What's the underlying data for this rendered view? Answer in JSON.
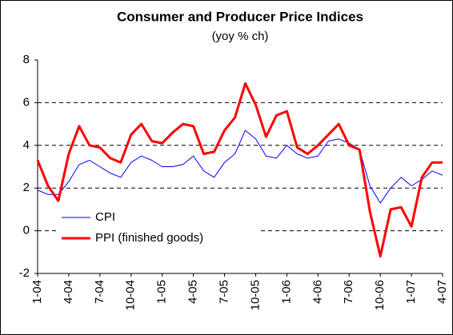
{
  "chart_data": {
    "type": "line",
    "title": "Consumer and Producer Price Indices",
    "subtitle": "(yoy % ch)",
    "categories": [
      "1-04",
      null,
      null,
      "4-04",
      null,
      null,
      "7-04",
      null,
      null,
      "10-04",
      null,
      null,
      "1-05",
      null,
      null,
      "4-05",
      null,
      null,
      "7-05",
      null,
      null,
      "10-05",
      null,
      null,
      "1-06",
      null,
      null,
      "4-06",
      null,
      null,
      "7-06",
      null,
      null,
      "10-06",
      null,
      null,
      "1-07",
      null,
      null,
      "4-07"
    ],
    "series": [
      {
        "name": "CPI",
        "color": "#0000ff",
        "width": 1,
        "values": [
          1.9,
          1.7,
          1.7,
          2.3,
          3.1,
          3.3,
          3.0,
          2.7,
          2.5,
          3.2,
          3.5,
          3.3,
          3.0,
          3.0,
          3.1,
          3.5,
          2.8,
          2.5,
          3.2,
          3.6,
          4.7,
          4.3,
          3.5,
          3.4,
          4.0,
          3.6,
          3.4,
          3.5,
          4.2,
          4.3,
          4.1,
          3.8,
          2.1,
          1.3,
          2.0,
          2.5,
          2.1,
          2.4,
          2.8,
          2.6
        ]
      },
      {
        "name": "PPI (finished goods)",
        "color": "#ff0000",
        "width": 3,
        "values": [
          3.3,
          2.1,
          1.4,
          3.6,
          4.9,
          4.0,
          3.9,
          3.4,
          3.2,
          4.5,
          5.0,
          4.2,
          4.1,
          4.6,
          5.0,
          4.9,
          3.6,
          3.7,
          4.7,
          5.3,
          6.9,
          5.9,
          4.4,
          5.4,
          5.6,
          3.9,
          3.6,
          4.0,
          4.5,
          5.0,
          4.0,
          3.8,
          0.9,
          -1.2,
          1.0,
          1.1,
          0.2,
          2.5,
          3.2,
          3.2
        ]
      }
    ],
    "ylim": [
      -2,
      8
    ],
    "yticks": [
      -2,
      0,
      2,
      4,
      6,
      8
    ],
    "grid": true,
    "legend": "lower left"
  }
}
